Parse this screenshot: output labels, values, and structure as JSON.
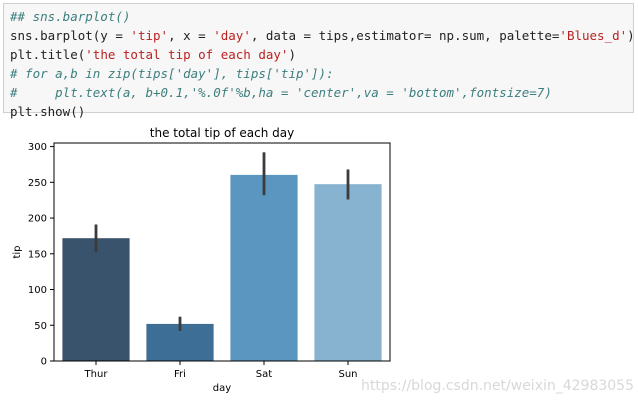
{
  "code_cell": {
    "lines": [
      [
        {
          "t": "## sns.barplot()",
          "c": "comment"
        }
      ],
      [
        {
          "t": "sns.barplot(y = ",
          "c": "name"
        },
        {
          "t": "'tip'",
          "c": "string"
        },
        {
          "t": ", x = ",
          "c": "plain"
        },
        {
          "t": "'day'",
          "c": "string"
        },
        {
          "t": ", data = tips,estimator= np.sum, palette=",
          "c": "plain"
        },
        {
          "t": "'Blues_d'",
          "c": "string"
        },
        {
          "t": ")",
          "c": "plain"
        }
      ],
      [
        {
          "t": "plt.title(",
          "c": "name"
        },
        {
          "t": "'the total tip of each day'",
          "c": "string"
        },
        {
          "t": ")",
          "c": "plain"
        }
      ],
      [
        {
          "t": "# for a,b in zip(tips['day'], tips['tip']):",
          "c": "comment"
        }
      ],
      [
        {
          "t": "#     plt.text(a, b+0.1,'%.0f'%b,ha = 'center',va = 'bottom',fontsize=7)",
          "c": "comment"
        }
      ],
      [
        {
          "t": "plt.show",
          "c": "name"
        },
        {
          "t": "()",
          "c": "plain"
        }
      ]
    ]
  },
  "chart_data": {
    "type": "bar",
    "title": "the total tip of each day",
    "xlabel": "day",
    "ylabel": "tip",
    "categories": [
      "Thur",
      "Fri",
      "Sat",
      "Sun"
    ],
    "values": [
      171.8,
      51.9,
      260.4,
      247.4
    ],
    "error_low": [
      152,
      42,
      232,
      226
    ],
    "error_high": [
      191,
      62,
      292,
      268
    ],
    "ylim": [
      0,
      305
    ],
    "yticks": [
      0,
      50,
      100,
      150,
      200,
      250,
      300
    ],
    "colors": [
      "#3a536c",
      "#3d6e96",
      "#5b96c0",
      "#88b3d0"
    ],
    "error_color": "#3b3b3b",
    "grid": false
  },
  "watermark": "https://blog.csdn.net/weixin_42983055"
}
